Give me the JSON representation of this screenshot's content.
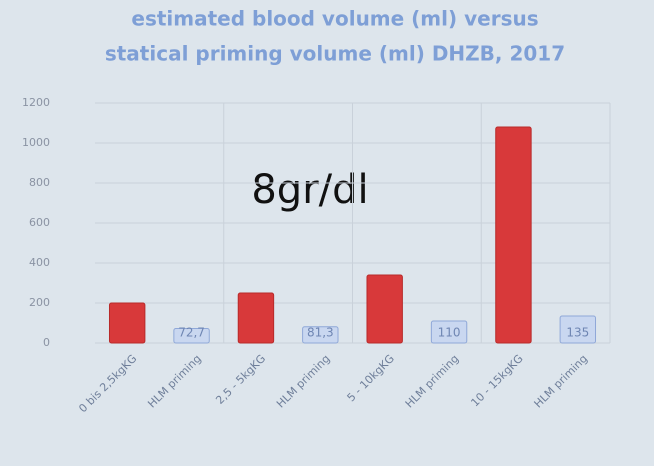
{
  "chart_data": {
    "type": "bar",
    "title": "estimated blood volume (ml) versus",
    "subtitle": "statical priming volume (ml) DHZB, 2017",
    "annotation": "8gr/dl",
    "categories": [
      "0 bis 2,5kgKG",
      "HLM priming",
      "2,5 - 5kgKG",
      "HLM priming",
      "5 - 10kgKG",
      "HLM priming",
      "10 - 15kgKG",
      "HLM priming"
    ],
    "values": [
      200,
      72.7,
      250,
      81.3,
      340,
      110,
      1080,
      135
    ],
    "value_labels": [
      null,
      "72,7",
      null,
      "81,3",
      null,
      "110",
      null,
      "135"
    ],
    "colors": [
      "#d8393a",
      "#c9d7f0",
      "#d8393a",
      "#c9d7f0",
      "#d8393a",
      "#c9d7f0",
      "#d8393a",
      "#c9d7f0"
    ],
    "ylim": [
      0,
      1200
    ],
    "yticks": [
      0,
      200,
      400,
      600,
      800,
      1000,
      1200
    ],
    "grid": true
  }
}
